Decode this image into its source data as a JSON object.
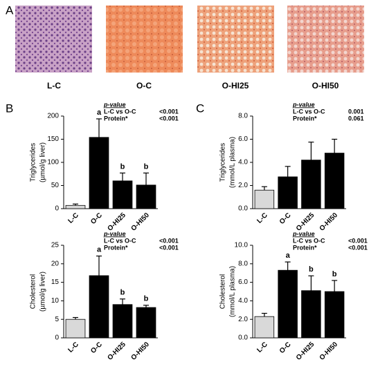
{
  "panel_labels": [
    "A",
    "B",
    "C"
  ],
  "images": {
    "labels": [
      "L-C",
      "O-C",
      "O-HI25",
      "O-HI50"
    ]
  },
  "chart_data": [
    {
      "type": "bar",
      "panel": "B",
      "ylabel": [
        "Triglycerides",
        "(µmol/g liver)"
      ],
      "categories": [
        "L-C",
        "O-C",
        "O-HI25",
        "O-HI50"
      ],
      "values": [
        7,
        154,
        60,
        51
      ],
      "errors": [
        3,
        40,
        17,
        26
      ],
      "colors": [
        "#d9d9d9",
        "#000000",
        "#000000",
        "#000000"
      ],
      "letters": [
        null,
        "a",
        "b",
        "b"
      ],
      "ylim": [
        0,
        200
      ],
      "yticks": [
        0,
        50,
        100,
        150,
        200
      ],
      "pvalue": {
        "title": "p-value",
        "rows": [
          [
            "L-C vs O-C",
            "<0.001"
          ],
          [
            "Protein*",
            "<0.001"
          ]
        ]
      }
    },
    {
      "type": "bar",
      "panel": "B",
      "ylabel": [
        "Cholesterol",
        "(µmol/g liver)"
      ],
      "categories": [
        "L-C",
        "O-C",
        "O-HI25",
        "O-HI50"
      ],
      "values": [
        5.0,
        16.8,
        9.0,
        8.2
      ],
      "errors": [
        0.5,
        5.3,
        1.5,
        0.6
      ],
      "colors": [
        "#d9d9d9",
        "#000000",
        "#000000",
        "#000000"
      ],
      "letters": [
        null,
        "a",
        "b",
        "b"
      ],
      "ylim": [
        0,
        25
      ],
      "yticks": [
        0,
        5,
        10,
        15,
        20,
        25
      ],
      "pvalue": {
        "title": "p-value",
        "rows": [
          [
            "L-C vs O-C",
            "<0.001"
          ],
          [
            "Protein*",
            "<0.001"
          ]
        ]
      }
    },
    {
      "type": "bar",
      "panel": "C",
      "ylabel": [
        "Triglycerides",
        "(mmol/L plasma)"
      ],
      "categories": [
        "L-C",
        "O-C",
        "O-HI25",
        "O-HI50"
      ],
      "values": [
        1.6,
        2.75,
        4.2,
        4.8
      ],
      "errors": [
        0.3,
        0.9,
        1.55,
        1.2
      ],
      "colors": [
        "#d9d9d9",
        "#000000",
        "#000000",
        "#000000"
      ],
      "letters": [
        null,
        null,
        null,
        null
      ],
      "ylim": [
        0,
        8
      ],
      "yticks": [
        {
          "value": 0,
          "label": "0.0"
        },
        {
          "value": 2,
          "label": "2.0"
        },
        {
          "value": 4,
          "label": "4.0"
        },
        {
          "value": 6,
          "label": "6.0"
        },
        {
          "value": 8,
          "label": "8.0"
        }
      ],
      "pvalue": {
        "title": "p-value",
        "rows": [
          [
            "L-C vs O-C",
            "0.001"
          ],
          [
            "Protein*",
            "0.061"
          ]
        ]
      }
    },
    {
      "type": "bar",
      "panel": "C",
      "ylabel": [
        "Cholesterol",
        "(mmol/L plasma)"
      ],
      "categories": [
        "L-C",
        "O-C",
        "O-HI25",
        "O-HI50"
      ],
      "values": [
        2.3,
        7.3,
        5.1,
        5.0
      ],
      "errors": [
        0.35,
        0.9,
        1.6,
        1.2
      ],
      "colors": [
        "#d9d9d9",
        "#000000",
        "#000000",
        "#000000"
      ],
      "letters": [
        null,
        "a",
        "b",
        "b"
      ],
      "ylim": [
        0,
        10
      ],
      "yticks": [
        {
          "value": 0,
          "label": "0.0"
        },
        {
          "value": 2,
          "label": "2.0"
        },
        {
          "value": 4,
          "label": "4.0"
        },
        {
          "value": 6,
          "label": "6.0"
        },
        {
          "value": 8,
          "label": "8.0"
        },
        {
          "value": 10,
          "label": "10.0"
        }
      ],
      "pvalue": {
        "title": "p-value",
        "rows": [
          [
            "L-C vs O-C",
            "<0.001"
          ],
          [
            "Protein*",
            "<0.001"
          ]
        ]
      }
    }
  ]
}
